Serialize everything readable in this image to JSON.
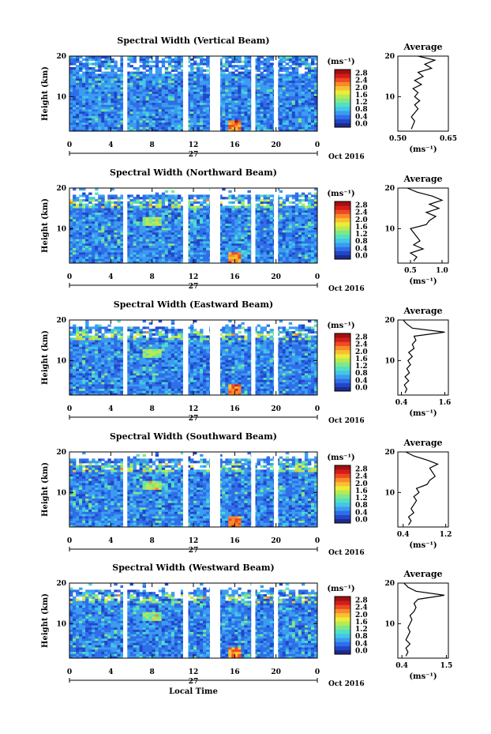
{
  "figure": {
    "xlabel": "Local Time",
    "date_label": "Oct 2016",
    "day_label": "27",
    "colorbar_unit": "(ms⁻¹)",
    "average_title": "Average",
    "average_xlabel": "(ms⁻¹)",
    "height_label": "Height (km)",
    "colorscale": {
      "ticks": [
        "0.0",
        "0.4",
        "0.8",
        "1.2",
        "1.6",
        "2.0",
        "2.4",
        "2.8"
      ],
      "colors": [
        "#1f2a8a",
        "#2246c8",
        "#2f6ee8",
        "#3b9cf0",
        "#43c6e8",
        "#52e0c0",
        "#7ee88a",
        "#b8ea52",
        "#ecec3a",
        "#f8c030",
        "#f88a2a",
        "#ee4a22",
        "#d21c1c",
        "#a01010"
      ]
    }
  },
  "chart_data": [
    {
      "type": "heatmap",
      "title": "Spectral Width (Vertical Beam)",
      "xlabel": "Local Time",
      "ylabel": "Height (km)",
      "x_ticks": [
        "0",
        "4",
        "8",
        "12",
        "16",
        "20",
        "0"
      ],
      "y_ticks": [
        "20",
        "10"
      ],
      "xlim": [
        0,
        24
      ],
      "ylim": [
        1.5,
        20
      ],
      "zlim": [
        0,
        3.0
      ],
      "data_gaps_hours": [
        [
          5.2,
          5.6
        ],
        [
          11.0,
          11.5
        ],
        [
          13.6,
          14.6
        ],
        [
          17.6,
          18.0
        ],
        [
          19.8,
          20.2
        ]
      ],
      "profile": {
        "title": "Average",
        "xlabel": "(ms⁻¹)",
        "xlim": [
          0.5,
          0.65
        ],
        "x_ticks": [
          "0.50",
          "0.65"
        ],
        "y_ticks": [
          "20",
          "10"
        ],
        "points": [
          [
            0.54,
            2
          ],
          [
            0.545,
            3
          ],
          [
            0.55,
            4
          ],
          [
            0.54,
            5
          ],
          [
            0.55,
            6
          ],
          [
            0.56,
            7
          ],
          [
            0.55,
            8
          ],
          [
            0.565,
            9
          ],
          [
            0.55,
            10
          ],
          [
            0.56,
            11
          ],
          [
            0.545,
            12
          ],
          [
            0.57,
            13
          ],
          [
            0.55,
            14
          ],
          [
            0.575,
            15
          ],
          [
            0.56,
            16
          ],
          [
            0.6,
            17
          ],
          [
            0.58,
            18
          ],
          [
            0.61,
            19
          ],
          [
            0.56,
            20
          ]
        ]
      }
    },
    {
      "type": "heatmap",
      "title": "Spectral Width (Northward Beam)",
      "xlabel": "Local Time",
      "ylabel": "Height (km)",
      "x_ticks": [
        "0",
        "4",
        "8",
        "12",
        "16",
        "20",
        "0"
      ],
      "y_ticks": [
        "20",
        "10"
      ],
      "xlim": [
        0,
        24
      ],
      "ylim": [
        1.5,
        20
      ],
      "zlim": [
        0,
        3.0
      ],
      "data_gaps_hours": [
        [
          5.2,
          5.6
        ],
        [
          11.0,
          11.5
        ],
        [
          13.6,
          14.6
        ],
        [
          17.6,
          18.0
        ],
        [
          19.8,
          20.2
        ]
      ],
      "profile": {
        "title": "Average",
        "xlabel": "(ms⁻¹)",
        "xlim": [
          0.3,
          1.1
        ],
        "x_ticks": [
          "0.5",
          "1.0"
        ],
        "y_ticks": [
          "20",
          "10"
        ],
        "points": [
          [
            0.55,
            2
          ],
          [
            0.6,
            3
          ],
          [
            0.5,
            4
          ],
          [
            0.7,
            5
          ],
          [
            0.55,
            6
          ],
          [
            0.65,
            7
          ],
          [
            0.6,
            8
          ],
          [
            0.55,
            9
          ],
          [
            0.5,
            10
          ],
          [
            0.75,
            11
          ],
          [
            0.8,
            12
          ],
          [
            0.9,
            13
          ],
          [
            0.75,
            14
          ],
          [
            0.95,
            15
          ],
          [
            0.8,
            16
          ],
          [
            1.0,
            17
          ],
          [
            0.85,
            18
          ],
          [
            0.6,
            19
          ],
          [
            0.45,
            20
          ]
        ]
      }
    },
    {
      "type": "heatmap",
      "title": "Spectral Width (Eastward Beam)",
      "xlabel": "Local Time",
      "ylabel": "Height (km)",
      "x_ticks": [
        "0",
        "4",
        "8",
        "12",
        "16",
        "20",
        "0"
      ],
      "y_ticks": [
        "20",
        "10"
      ],
      "xlim": [
        0,
        24
      ],
      "ylim": [
        1.5,
        20
      ],
      "zlim": [
        0,
        3.0
      ],
      "data_gaps_hours": [
        [
          5.2,
          5.6
        ],
        [
          11.0,
          11.5
        ],
        [
          13.6,
          14.6
        ],
        [
          17.6,
          18.0
        ],
        [
          19.8,
          20.2
        ]
      ],
      "profile": {
        "title": "Average",
        "xlabel": "(ms⁻¹)",
        "xlim": [
          0.3,
          1.7
        ],
        "x_ticks": [
          "0.4",
          "1.6"
        ],
        "y_ticks": [
          "20",
          "10"
        ],
        "points": [
          [
            0.5,
            2
          ],
          [
            0.55,
            3
          ],
          [
            0.48,
            4
          ],
          [
            0.6,
            5
          ],
          [
            0.5,
            6
          ],
          [
            0.62,
            7
          ],
          [
            0.55,
            8
          ],
          [
            0.65,
            9
          ],
          [
            0.58,
            10
          ],
          [
            0.7,
            11
          ],
          [
            0.6,
            12
          ],
          [
            0.75,
            13
          ],
          [
            0.7,
            14
          ],
          [
            0.8,
            15
          ],
          [
            0.75,
            16
          ],
          [
            1.6,
            17
          ],
          [
            0.7,
            18
          ],
          [
            0.55,
            19
          ],
          [
            0.45,
            20
          ]
        ]
      }
    },
    {
      "type": "heatmap",
      "title": "Spectral Width (Southward Beam)",
      "xlabel": "Local Time",
      "ylabel": "Height (km)",
      "x_ticks": [
        "0",
        "4",
        "8",
        "12",
        "16",
        "20",
        "0"
      ],
      "y_ticks": [
        "20",
        "10"
      ],
      "xlim": [
        0,
        24
      ],
      "ylim": [
        1.5,
        20
      ],
      "zlim": [
        0,
        3.0
      ],
      "data_gaps_hours": [
        [
          5.2,
          5.6
        ],
        [
          11.0,
          11.5
        ],
        [
          13.6,
          14.6
        ],
        [
          17.6,
          18.0
        ],
        [
          19.8,
          20.2
        ]
      ],
      "profile": {
        "title": "Average",
        "xlabel": "(ms⁻¹)",
        "xlim": [
          0.3,
          1.25
        ],
        "x_ticks": [
          "0.4",
          "1.2"
        ],
        "y_ticks": [
          "20",
          "10"
        ],
        "points": [
          [
            0.5,
            2
          ],
          [
            0.55,
            3
          ],
          [
            0.5,
            4
          ],
          [
            0.6,
            5
          ],
          [
            0.55,
            6
          ],
          [
            0.6,
            7
          ],
          [
            0.65,
            8
          ],
          [
            0.6,
            9
          ],
          [
            0.7,
            10
          ],
          [
            0.65,
            11
          ],
          [
            0.85,
            12
          ],
          [
            0.9,
            13
          ],
          [
            1.0,
            14
          ],
          [
            0.95,
            15
          ],
          [
            0.9,
            16
          ],
          [
            1.05,
            17
          ],
          [
            0.85,
            18
          ],
          [
            0.6,
            19
          ],
          [
            0.45,
            20
          ]
        ]
      }
    },
    {
      "type": "heatmap",
      "title": "Spectral Width (Westward Beam)",
      "xlabel": "Local Time",
      "ylabel": "Height (km)",
      "x_ticks": [
        "0",
        "4",
        "8",
        "12",
        "16",
        "20",
        "0"
      ],
      "y_ticks": [
        "20",
        "10"
      ],
      "xlim": [
        0,
        24
      ],
      "ylim": [
        1.5,
        20
      ],
      "zlim": [
        0,
        3.0
      ],
      "data_gaps_hours": [
        [
          5.2,
          5.6
        ],
        [
          11.0,
          11.5
        ],
        [
          13.6,
          14.6
        ],
        [
          17.6,
          18.0
        ],
        [
          19.8,
          20.2
        ]
      ],
      "profile": {
        "title": "Average",
        "xlabel": "(ms⁻¹)",
        "xlim": [
          0.3,
          1.55
        ],
        "x_ticks": [
          "0.4",
          "1.5"
        ],
        "y_ticks": [
          "20",
          "10"
        ],
        "points": [
          [
            0.5,
            2
          ],
          [
            0.55,
            3
          ],
          [
            0.5,
            4
          ],
          [
            0.6,
            5
          ],
          [
            0.5,
            6
          ],
          [
            0.55,
            7
          ],
          [
            0.6,
            8
          ],
          [
            0.55,
            9
          ],
          [
            0.6,
            10
          ],
          [
            0.65,
            11
          ],
          [
            0.6,
            12
          ],
          [
            0.7,
            13
          ],
          [
            0.75,
            14
          ],
          [
            0.7,
            15
          ],
          [
            0.8,
            16
          ],
          [
            1.45,
            17
          ],
          [
            0.75,
            18
          ],
          [
            0.55,
            19
          ],
          [
            0.45,
            20
          ]
        ]
      }
    }
  ]
}
